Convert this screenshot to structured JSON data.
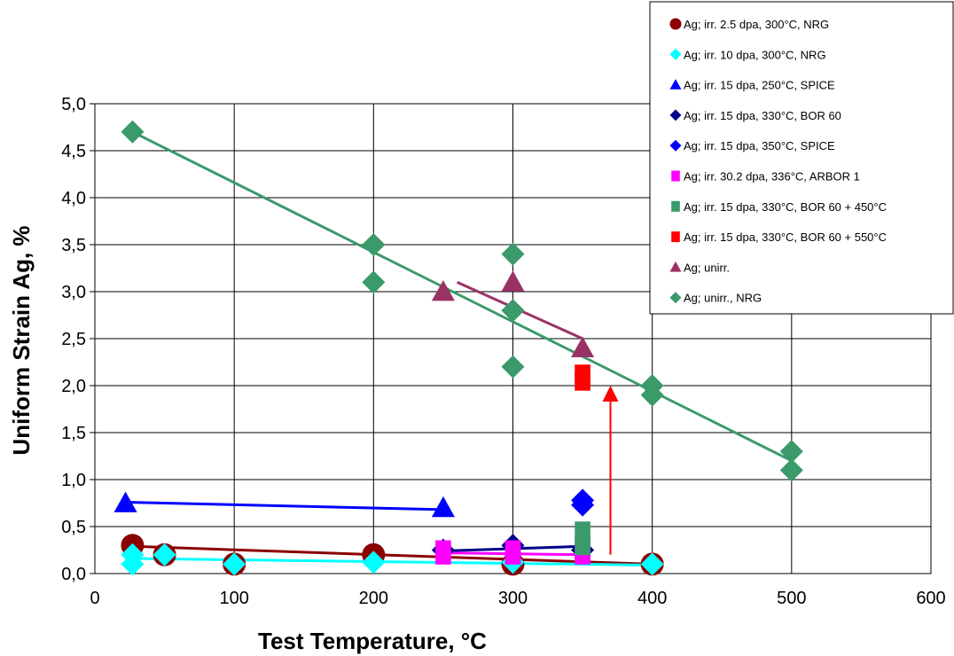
{
  "chart_data": {
    "type": "scatter",
    "title": "",
    "xlabel": "Test Temperature, °C",
    "ylabel": "Uniform Strain Ag, %",
    "xlim": [
      0,
      600
    ],
    "ylim": [
      0,
      5
    ],
    "x_ticks": [
      "0",
      "100",
      "200",
      "300",
      "400",
      "500",
      "600"
    ],
    "y_ticks": [
      "0,0",
      "0,5",
      "1,0",
      "1,5",
      "2,0",
      "2,5",
      "3,0",
      "3,5",
      "4,0",
      "4,5",
      "5,0"
    ],
    "grid": true,
    "legend_position": "top-right",
    "series": [
      {
        "name": "Ag; irr. 2.5 dpa, 300°C, NRG",
        "color": "#8B0000",
        "marker": "circle",
        "x": [
          27,
          50,
          100,
          200,
          300,
          400
        ],
        "y": [
          0.3,
          0.2,
          0.1,
          0.2,
          0.1,
          0.1
        ],
        "trend": [
          [
            27,
            0.29
          ],
          [
            400,
            0.1
          ]
        ]
      },
      {
        "name": "Ag; irr. 10 dpa, 300°C, NRG",
        "color": "#00FFFF",
        "marker": "diamond",
        "x": [
          27,
          27,
          50,
          100,
          200,
          300,
          400
        ],
        "y": [
          0.2,
          0.1,
          0.2,
          0.1,
          0.12,
          0.12,
          0.1
        ],
        "trend": [
          [
            27,
            0.16
          ],
          [
            400,
            0.09
          ]
        ]
      },
      {
        "name": "Ag; irr. 15 dpa, 250°C, SPICE",
        "color": "#0000FF",
        "marker": "triangle",
        "x": [
          22,
          250
        ],
        "y": [
          0.75,
          0.7
        ],
        "trend": [
          [
            22,
            0.76
          ],
          [
            250,
            0.68
          ]
        ]
      },
      {
        "name": "Ag; irr. 15 dpa, 330°C, BOR 60",
        "color": "#00008B",
        "marker": "diamond",
        "x": [
          250,
          300,
          350
        ],
        "y": [
          0.25,
          0.3,
          0.25
        ],
        "trend": [
          [
            250,
            0.24
          ],
          [
            350,
            0.29
          ]
        ]
      },
      {
        "name": "Ag; irr. 15 dpa, 350°C, SPICE",
        "color": "#0000FF",
        "marker": "diamond",
        "x": [
          350,
          350
        ],
        "y": [
          0.78,
          0.73
        ],
        "trend": null
      },
      {
        "name": "Ag; irr. 30.2 dpa, 336°C, ARBOR 1",
        "color": "#FF00FF",
        "marker": "square",
        "x": [
          250,
          250,
          300,
          300,
          350,
          350
        ],
        "y": [
          0.25,
          0.2,
          0.25,
          0.2,
          0.25,
          0.2
        ],
        "trend": [
          [
            250,
            0.22
          ],
          [
            350,
            0.2
          ]
        ]
      },
      {
        "name": "Ag; irr. 15 dpa, 330°C, BOR 60 + 450°C",
        "color": "#3A9A6A",
        "marker": "square",
        "x": [
          350,
          350
        ],
        "y": [
          0.45,
          0.3
        ],
        "trend": null
      },
      {
        "name": "Ag; irr. 15 dpa, 330°C, BOR 60 + 550°C",
        "color": "#FF0000",
        "marker": "square",
        "x": [
          350,
          350
        ],
        "y": [
          2.12,
          2.05
        ],
        "trend": null
      },
      {
        "name": "Ag; unirr.",
        "color": "#993366",
        "marker": "triangle",
        "x": [
          250,
          300,
          350
        ],
        "y": [
          3.0,
          3.1,
          2.4
        ],
        "trend": [
          [
            260,
            3.1
          ],
          [
            350,
            2.5
          ]
        ]
      },
      {
        "name": "Ag; unirr., NRG",
        "color": "#3A9A6A",
        "marker": "diamond",
        "x": [
          27,
          200,
          200,
          300,
          300,
          300,
          300,
          400,
          400,
          500,
          500
        ],
        "y": [
          4.7,
          3.5,
          3.1,
          3.4,
          2.8,
          2.2,
          2.8,
          2.0,
          1.9,
          1.3,
          1.1
        ],
        "trend": [
          [
            27,
            4.7
          ],
          [
            500,
            1.2
          ]
        ]
      }
    ],
    "annotations": [
      {
        "type": "arrow",
        "color": "#FF0000",
        "from": [
          370,
          0.2
        ],
        "to": [
          370,
          2.0
        ]
      }
    ]
  }
}
